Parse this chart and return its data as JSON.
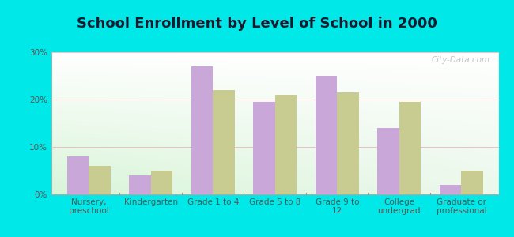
{
  "title": "School Enrollment by Level of School in 2000",
  "categories": [
    "Nursery,\npreschool",
    "Kindergarten",
    "Grade 1 to 4",
    "Grade 5 to 8",
    "Grade 9 to\n12",
    "College\nundergrad",
    "Graduate or\nprofessional"
  ],
  "alma_values": [
    8.0,
    4.0,
    27.0,
    19.5,
    25.0,
    14.0,
    2.0
  ],
  "ny_values": [
    6.0,
    5.0,
    22.0,
    21.0,
    21.5,
    19.5,
    5.0
  ],
  "alma_color": "#c9a8d9",
  "ny_color": "#c8cc90",
  "background_outer": "#00e8e8",
  "background_inner_topleft": "#e8f5e0",
  "background_inner_bottomright": "#f8fff8",
  "ylim": [
    0,
    30
  ],
  "yticks": [
    0,
    10,
    20,
    30
  ],
  "ytick_labels": [
    "0%",
    "10%",
    "20%",
    "30%"
  ],
  "watermark": "City-Data.com",
  "title_fontsize": 13,
  "tick_fontsize": 7.5,
  "legend_fontsize": 9,
  "grid_color": "#dddddd",
  "title_color": "#1a1a2e",
  "tick_color": "#555555"
}
